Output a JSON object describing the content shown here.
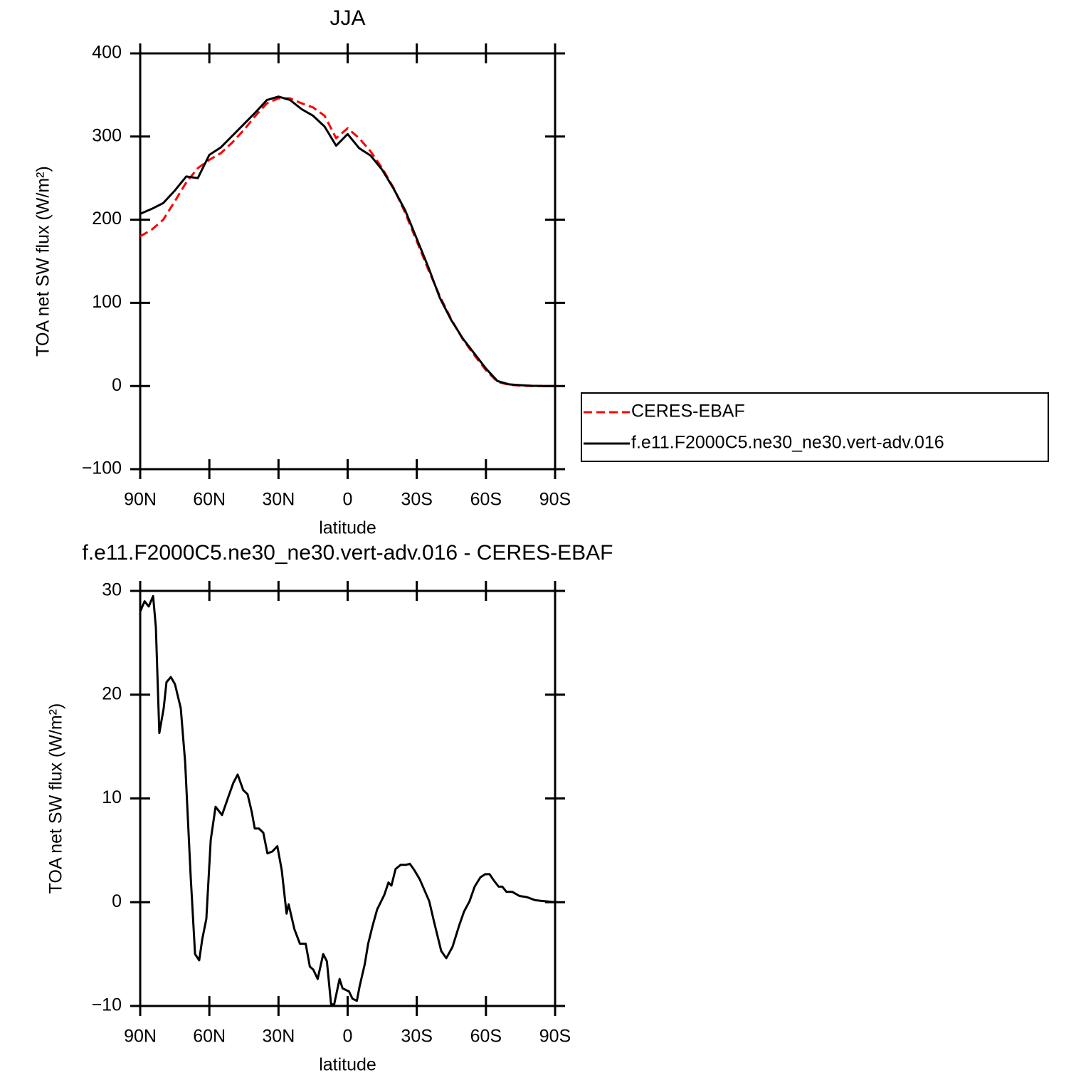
{
  "chart_data": [
    {
      "type": "line",
      "title": "JJA",
      "xlabel": "latitude",
      "ylabel": "TOA net SW flux (W/m²)",
      "x": [
        90,
        85,
        80,
        75,
        70,
        65,
        60,
        55,
        50,
        45,
        40,
        35,
        30,
        25,
        20,
        15,
        10,
        5,
        0,
        -5,
        -10,
        -15,
        -20,
        -25,
        -30,
        -35,
        -40,
        -45,
        -50,
        -55,
        -60,
        -65,
        -70,
        -75,
        -80,
        -85,
        -90
      ],
      "series": [
        {
          "name": "CERES-EBAF",
          "color": "#ff0000",
          "dashed": true,
          "values": [
            180,
            188,
            200,
            222,
            245,
            262,
            272,
            280,
            293,
            308,
            325,
            340,
            346,
            346,
            340,
            335,
            325,
            298,
            310,
            298,
            282,
            262,
            238,
            208,
            174,
            140,
            108,
            80,
            56,
            37,
            19,
            5,
            1.5,
            0.5,
            0,
            0,
            0
          ]
        },
        {
          "name": "f.e11.F2000C5.ne30_ne30.vert-adv.016",
          "color": "#000000",
          "dashed": false,
          "values": [
            207,
            213,
            220,
            235,
            252,
            250,
            278,
            287,
            301,
            315,
            329,
            344,
            348,
            344,
            333,
            325,
            312,
            289,
            303,
            286,
            277,
            260,
            237,
            211,
            177,
            143,
            106,
            79,
            57,
            39,
            21,
            6,
            2,
            1,
            0.3,
            0,
            0
          ]
        }
      ],
      "xlim": [
        90,
        -90
      ],
      "xticks": [
        {
          "value": 90,
          "label": "90N"
        },
        {
          "value": 60,
          "label": "60N"
        },
        {
          "value": 30,
          "label": "30N"
        },
        0,
        {
          "value": -30,
          "label": "30S"
        },
        {
          "value": -60,
          "label": "60S"
        },
        {
          "value": -90,
          "label": "90S"
        }
      ],
      "ylim": [
        -100,
        400
      ],
      "yticks": [
        {
          "value": -100,
          "label": "−100"
        },
        0,
        100,
        200,
        300,
        400
      ],
      "legend": "right"
    },
    {
      "type": "line",
      "title": "f.e11.F2000C5.ne30_ne30.vert-adv.016 - CERES-EBAF",
      "xlabel": "latitude",
      "ylabel": "TOA net SW flux (W/m²)",
      "x": [
        90,
        88.1,
        86.3,
        84.4,
        83.2,
        81.7,
        79.8,
        78.6,
        76.7,
        74.9,
        72.4,
        70.5,
        68.1,
        66.2,
        64.4,
        63.1,
        61.3,
        59.4,
        57.3,
        54.5,
        52.0,
        49.6,
        47.7,
        45.3,
        43.4,
        41.6,
        40.3,
        38.5,
        36.6,
        34.8,
        32.6,
        30.5,
        28.6,
        26.5,
        25.6,
        23.1,
        20.7,
        18.2,
        16.4,
        14.9,
        13.0,
        10.6,
        9.0,
        7.2,
        5.9,
        3.5,
        2.2,
        -0.6,
        -2.1,
        -4.0,
        -5.2,
        -7.4,
        -8.9,
        -10.8,
        -12.8,
        -15.9,
        -17.7,
        -19.0,
        -20.8,
        -23.0,
        -25.2,
        -27.0,
        -28.9,
        -31.3,
        -35.4,
        -37.5,
        -40.6,
        -42.8,
        -45.5,
        -48.3,
        -50.5,
        -52.9,
        -55.1,
        -57.6,
        -59.7,
        -61.6,
        -63.4,
        -65.5,
        -67.1,
        -68.9,
        -71.4,
        -74.6,
        -77.6,
        -81.3,
        -85.3,
        -90
      ],
      "values": [
        28,
        29,
        28.5,
        29.5,
        26.5,
        16.3,
        18.7,
        21.2,
        21.7,
        21,
        18.7,
        13.5,
        2.5,
        -5,
        -5.6,
        -3.6,
        -1.6,
        6,
        9.2,
        8.4,
        10,
        11.5,
        12.3,
        10.8,
        10.4,
        8.7,
        7.1,
        7.1,
        6.7,
        4.7,
        4.9,
        5.4,
        3.1,
        -1.1,
        -0.2,
        -2.6,
        -4,
        -4,
        -6.2,
        -6.5,
        -7.4,
        -5,
        -5.7,
        -9.8,
        -9.9,
        -7.4,
        -8.3,
        -8.6,
        -9.3,
        -9.5,
        -8.1,
        -6,
        -4,
        -2.3,
        -0.7,
        0.7,
        1.9,
        1.6,
        3.2,
        3.6,
        3.6,
        3.7,
        3.1,
        2.2,
        0.1,
        -1.9,
        -4.7,
        -5.4,
        -4.3,
        -2.3,
        -0.9,
        0.1,
        1.5,
        2.4,
        2.7,
        2.7,
        2.1,
        1.5,
        1.5,
        1,
        1,
        0.6,
        0.5,
        0.2,
        0.1,
        0
      ],
      "color": "#000000",
      "xlim": [
        90,
        -90
      ],
      "xticks": [
        {
          "value": 90,
          "label": "90N"
        },
        {
          "value": 60,
          "label": "60N"
        },
        {
          "value": 30,
          "label": "30N"
        },
        0,
        {
          "value": -30,
          "label": "30S"
        },
        {
          "value": -60,
          "label": "60S"
        },
        {
          "value": -90,
          "label": "90S"
        }
      ],
      "ylim": [
        -10,
        30
      ],
      "yticks": [
        {
          "value": -10,
          "label": "−10"
        },
        0,
        10,
        20,
        30
      ]
    }
  ]
}
